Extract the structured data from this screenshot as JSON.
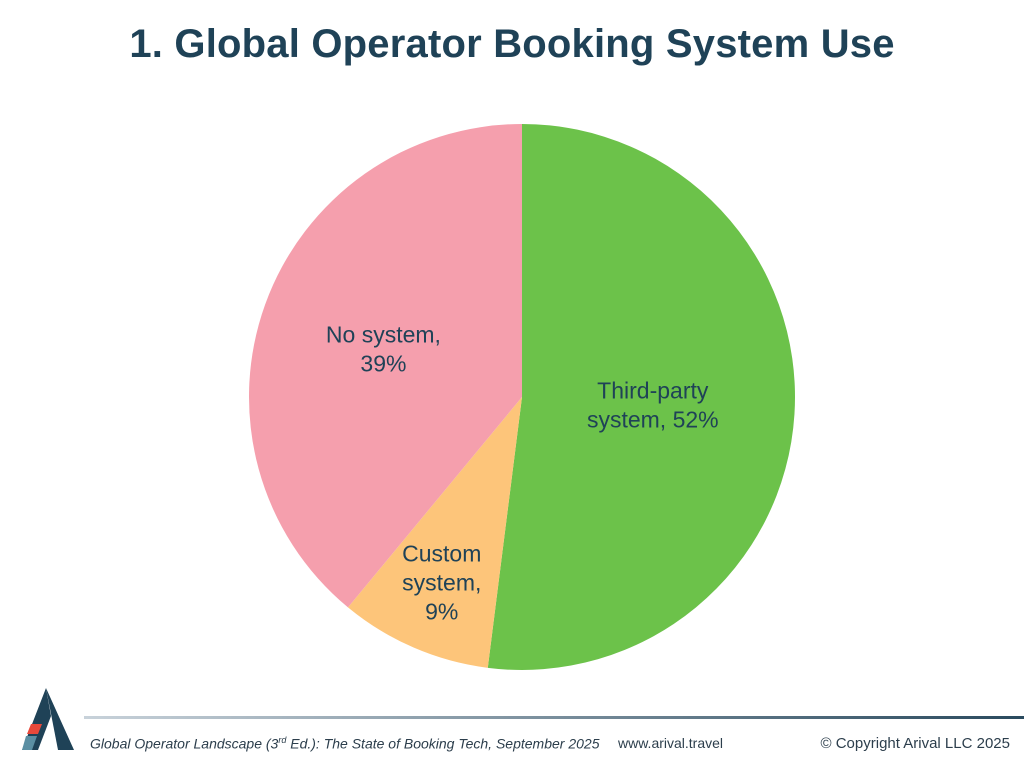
{
  "chart_data": {
    "type": "pie",
    "title": "1. Global Operator Booking System Use",
    "slices": [
      {
        "label_lines": [
          "Third-party",
          "system, 52%"
        ],
        "value": 52,
        "color": "#6cc24a"
      },
      {
        "label_lines": [
          "Custom",
          "system,",
          "9%"
        ],
        "value": 9,
        "color": "#fdc57a"
      },
      {
        "label_lines": [
          "No system,",
          "39%"
        ],
        "value": 39,
        "color": "#f59fad"
      }
    ]
  },
  "footer": {
    "citation_pre": "Global Operator Landscape (3",
    "citation_sup": "rd",
    "citation_post": " Ed.):  The State of Booking Tech, September 2025",
    "website": "www.arival.travel",
    "copyright": "© Copyright Arival LLC 2025"
  }
}
